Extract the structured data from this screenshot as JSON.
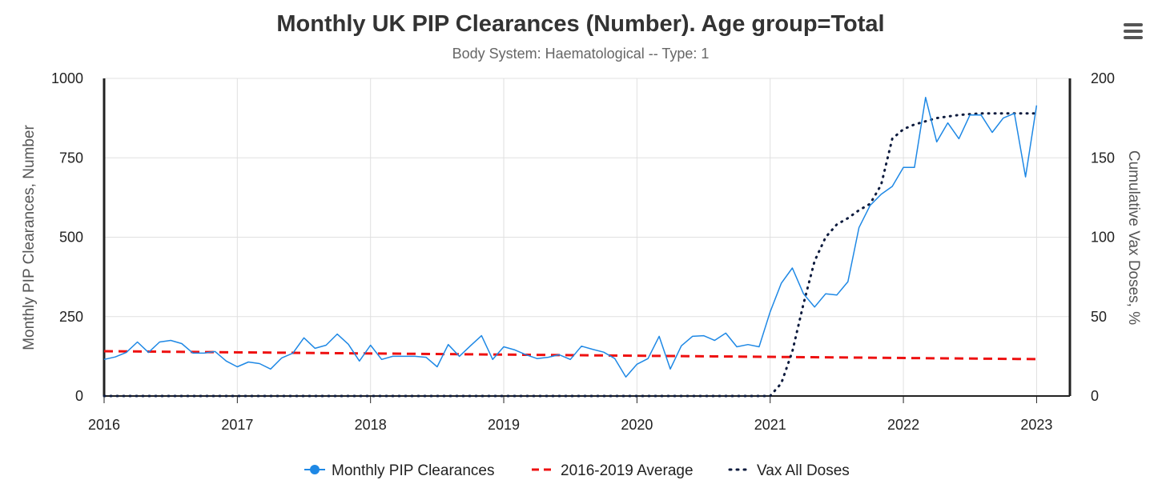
{
  "title": "Monthly UK PIP Clearances (Number). Age group=Total",
  "subtitle": "Body System: Haematological -- Type: 1",
  "menu_icon": "hamburger-menu-icon",
  "colors": {
    "clearances": "#1e88e5",
    "average": "#ee1111",
    "vax": "#0d1b3e",
    "grid": "#e0e0e0",
    "axis": "#222222"
  },
  "legend": [
    "Monthly PIP Clearances",
    "2016-2019 Average",
    "Vax All Doses"
  ],
  "chart_data": {
    "type": "line",
    "x_axis": {
      "start": "2016-01",
      "end": "2023-03",
      "ticks": [
        "2016",
        "2017",
        "2018",
        "2019",
        "2020",
        "2021",
        "2022",
        "2023"
      ]
    },
    "y_left": {
      "label": "Monthly PIP Clearances, Number",
      "range": [
        0,
        1000
      ],
      "ticks": [
        "0",
        "250",
        "500",
        "750",
        "1000"
      ]
    },
    "y_right": {
      "label": "Cumulative Vax Doses, %",
      "range": [
        0,
        200
      ],
      "ticks": [
        "0",
        "50",
        "100",
        "150",
        "200"
      ]
    },
    "grid": true,
    "legend_position": "bottom",
    "series": [
      {
        "name": "Monthly PIP Clearances",
        "axis": "left",
        "style": "solid-line",
        "x": [
          "2016-01",
          "2016-02",
          "2016-03",
          "2016-04",
          "2016-05",
          "2016-06",
          "2016-07",
          "2016-08",
          "2016-09",
          "2016-10",
          "2016-11",
          "2016-12",
          "2017-01",
          "2017-02",
          "2017-03",
          "2017-04",
          "2017-05",
          "2017-06",
          "2017-07",
          "2017-08",
          "2017-09",
          "2017-10",
          "2017-11",
          "2017-12",
          "2018-01",
          "2018-02",
          "2018-03",
          "2018-04",
          "2018-05",
          "2018-06",
          "2018-07",
          "2018-08",
          "2018-09",
          "2018-10",
          "2018-11",
          "2018-12",
          "2019-01",
          "2019-02",
          "2019-03",
          "2019-04",
          "2019-05",
          "2019-06",
          "2019-07",
          "2019-08",
          "2019-09",
          "2019-10",
          "2019-11",
          "2019-12",
          "2020-01",
          "2020-02",
          "2020-03",
          "2020-04",
          "2020-05",
          "2020-06",
          "2020-07",
          "2020-08",
          "2020-09",
          "2020-10",
          "2020-11",
          "2020-12",
          "2021-01",
          "2021-02",
          "2021-03",
          "2021-04",
          "2021-05",
          "2021-06",
          "2021-07",
          "2021-08",
          "2021-09",
          "2021-10",
          "2021-11",
          "2021-12",
          "2022-01",
          "2022-02",
          "2022-03",
          "2022-04",
          "2022-05",
          "2022-06",
          "2022-07",
          "2022-08",
          "2022-09",
          "2022-10",
          "2022-11",
          "2022-12",
          "2023-01"
        ],
        "values": [
          115,
          123,
          137,
          170,
          137,
          170,
          175,
          165,
          135,
          135,
          140,
          110,
          92,
          107,
          102,
          85,
          120,
          135,
          183,
          150,
          160,
          195,
          163,
          110,
          160,
          115,
          125,
          125,
          125,
          122,
          92,
          162,
          125,
          158,
          190,
          115,
          155,
          145,
          130,
          118,
          122,
          130,
          115,
          157,
          147,
          138,
          118,
          60,
          100,
          118,
          188,
          85,
          158,
          188,
          190,
          175,
          198,
          155,
          162,
          155,
          265,
          355,
          403,
          322,
          280,
          322,
          318,
          360,
          530,
          600,
          635,
          660,
          720,
          720,
          940,
          800,
          860,
          810,
          885,
          885,
          830,
          875,
          890,
          690,
          915
        ]
      },
      {
        "name": "2016-2019 Average",
        "axis": "left",
        "style": "dashed-line",
        "x": [
          "2016-01",
          "2023-01"
        ],
        "values": [
          141,
          116
        ]
      },
      {
        "name": "Vax All Doses",
        "axis": "right",
        "style": "dotted-line",
        "x": [
          "2016-01",
          "2020-12",
          "2021-01",
          "2021-02",
          "2021-03",
          "2021-04",
          "2021-05",
          "2021-06",
          "2021-07",
          "2021-08",
          "2021-09",
          "2021-10",
          "2021-11",
          "2021-12",
          "2022-01",
          "2022-02",
          "2022-04",
          "2022-06",
          "2022-08",
          "2022-10",
          "2022-12",
          "2023-01"
        ],
        "values": [
          0,
          0,
          0,
          8,
          28,
          58,
          85,
          100,
          108,
          112,
          117,
          121,
          133,
          162,
          168,
          171,
          175,
          177,
          178,
          178,
          178,
          178
        ]
      }
    ]
  }
}
